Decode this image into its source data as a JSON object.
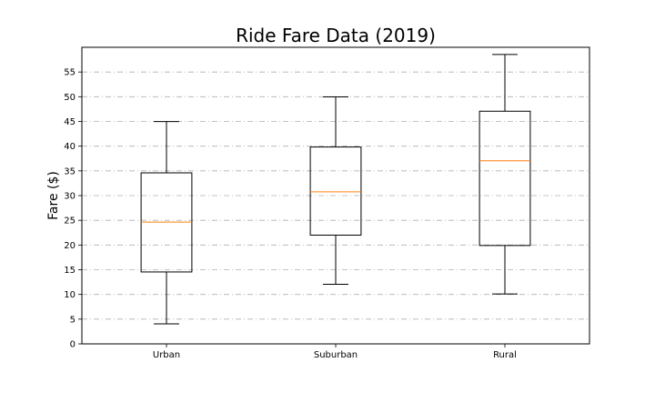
{
  "chart_data": {
    "type": "box",
    "title": "Ride Fare Data (2019)",
    "xlabel": "",
    "ylabel": "Fare ($)",
    "ylim": [
      0,
      60
    ],
    "yticks": [
      0,
      5,
      10,
      15,
      20,
      25,
      30,
      35,
      40,
      45,
      50,
      55
    ],
    "grid": "y-dashdot",
    "categories": [
      "Urban",
      "Suburban",
      "Rural"
    ],
    "series": [
      {
        "category": "Urban",
        "whisker_low": 4.05,
        "q1": 14.55,
        "median": 24.64,
        "q3": 34.6,
        "whisker_high": 44.97
      },
      {
        "category": "Suburban",
        "whisker_low": 12.05,
        "q1": 22.0,
        "median": 30.75,
        "q3": 39.83,
        "whisker_high": 49.96
      },
      {
        "category": "Rural",
        "whisker_low": 10.11,
        "q1": 19.9,
        "median": 37.05,
        "q3": 47.07,
        "whisker_high": 58.55
      }
    ],
    "colors": {
      "box": "#000000",
      "median": "#ff7f0e",
      "grid": "#b0b0b0"
    }
  }
}
